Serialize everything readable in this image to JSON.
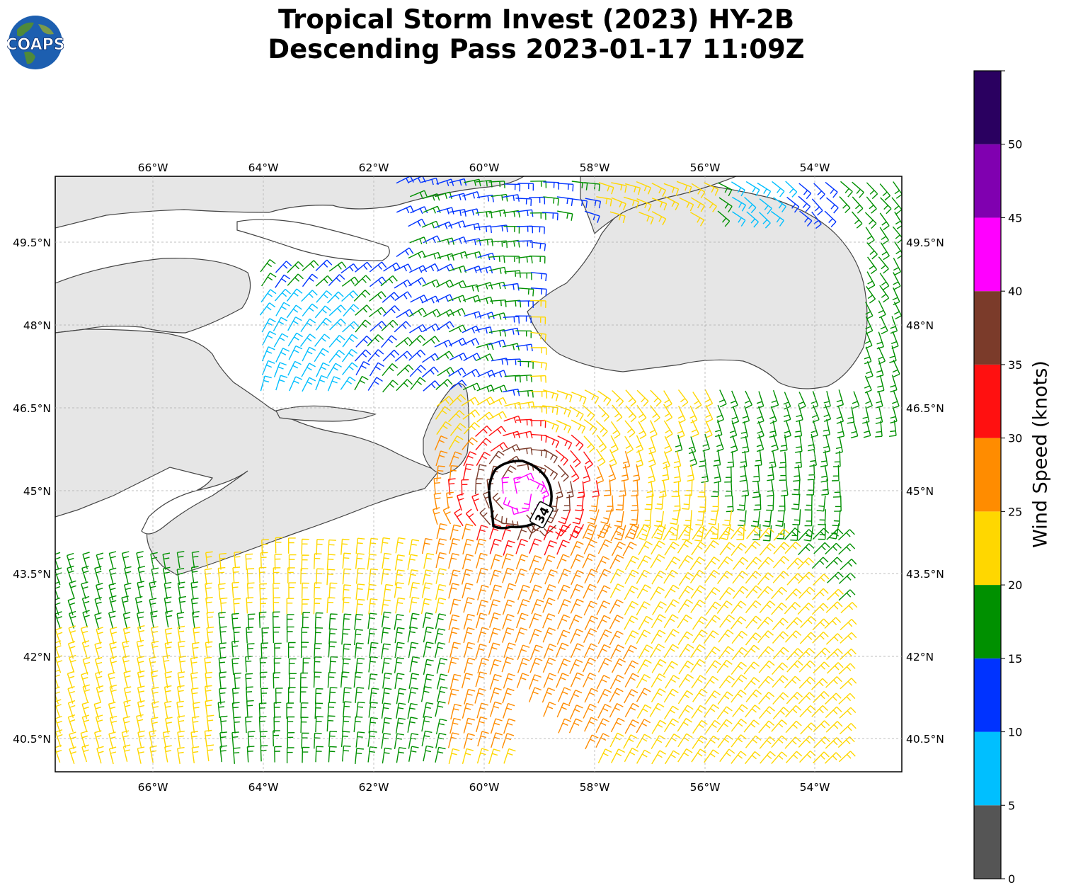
{
  "title": {
    "line1": "Tropical Storm Invest (2023) HY-2B",
    "line2": "Descending Pass 2023-01-17 11:09Z"
  },
  "logo": {
    "text": "COAPS",
    "icon": "globe-icon"
  },
  "map": {
    "lon_labels": [
      "66°W",
      "64°W",
      "62°W",
      "60°W",
      "58°W",
      "56°W",
      "54°W"
    ],
    "lat_labels": [
      "49.5°N",
      "48°N",
      "46.5°N",
      "45°N",
      "43.5°N",
      "42°N",
      "40.5°N"
    ],
    "contour_label": "34",
    "land_color": "#e6e6e6",
    "coast_color": "#444444"
  },
  "colorbar": {
    "label": "Wind Speed (knots)",
    "ticks": [
      "0",
      "5",
      "10",
      "15",
      "20",
      "25",
      "30",
      "35",
      "40",
      "45",
      "50"
    ],
    "bins": [
      {
        "range": "0-5",
        "color": "#555555"
      },
      {
        "range": "5-10",
        "color": "#00bfff"
      },
      {
        "range": "10-15",
        "color": "#0033ff"
      },
      {
        "range": "15-20",
        "color": "#009000"
      },
      {
        "range": "20-25",
        "color": "#ffd700"
      },
      {
        "range": "25-30",
        "color": "#ff8c00"
      },
      {
        "range": "30-35",
        "color": "#ff1010"
      },
      {
        "range": "35-40",
        "color": "#7b3b2a"
      },
      {
        "range": "40-45",
        "color": "#ff00ff"
      },
      {
        "range": "45-50",
        "color": "#8000b0"
      },
      {
        "range": "50+",
        "color": "#2a0060"
      }
    ]
  }
}
